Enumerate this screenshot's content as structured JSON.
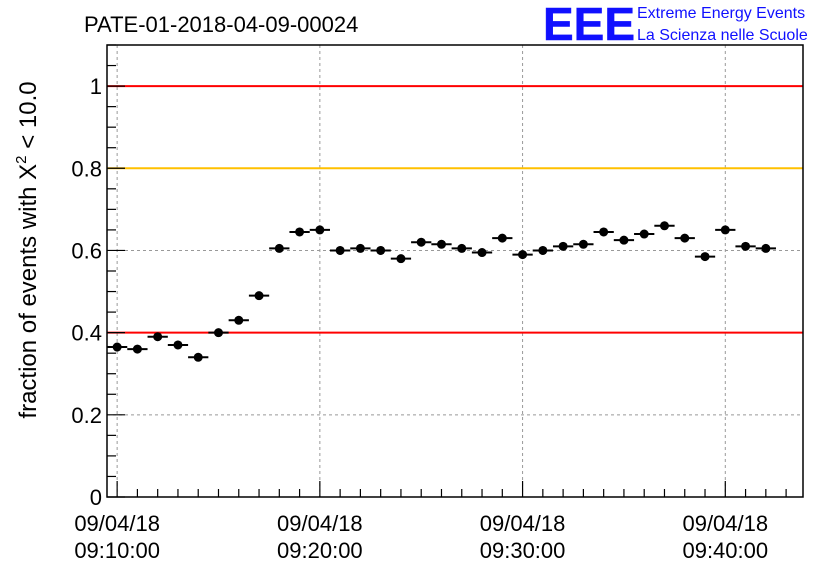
{
  "run_title": "PATE-01-2018-04-09-00024",
  "logo": {
    "mark": "EEE",
    "line1": "Extreme Energy Events",
    "line2": "La Scienza nelle Scuole",
    "color": "#1010ff"
  },
  "chart_data": {
    "type": "scatter",
    "title": "PATE-01-2018-04-09-00024",
    "ylabel": "fraction of events with X² < 10.0",
    "ylabel_parts": {
      "prefix": "fraction of events with X",
      "sup": "2",
      "suffix": " < 10.0"
    },
    "xlabel": "",
    "ylim": [
      0,
      1.1
    ],
    "xlim": [
      "2018-04-09 09:09:30",
      "2018-04-09 09:43:50"
    ],
    "grid": true,
    "yticks": [
      {
        "value": 0,
        "label": "0"
      },
      {
        "value": 0.2,
        "label": "0.2"
      },
      {
        "value": 0.4,
        "label": "0.4"
      },
      {
        "value": 0.6,
        "label": "0.6"
      },
      {
        "value": 0.8,
        "label": "0.8"
      },
      {
        "value": 1,
        "label": "1"
      }
    ],
    "xticks": [
      {
        "value": "2018-04-09 09:10:00",
        "date": "09/04/18",
        "time": "09:10:00"
      },
      {
        "value": "2018-04-09 09:20:00",
        "date": "09/04/18",
        "time": "09:20:00"
      },
      {
        "value": "2018-04-09 09:30:00",
        "date": "09/04/18",
        "time": "09:30:00"
      },
      {
        "value": "2018-04-09 09:40:00",
        "date": "09/04/18",
        "time": "09:40:00"
      }
    ],
    "reference_lines": [
      {
        "y": 1.0,
        "color": "#ff0000"
      },
      {
        "y": 0.8,
        "color": "#ffc000"
      },
      {
        "y": 0.4,
        "color": "#ff0000"
      }
    ],
    "x": [
      "2018-04-09 09:10:00",
      "2018-04-09 09:11:00",
      "2018-04-09 09:12:00",
      "2018-04-09 09:13:00",
      "2018-04-09 09:14:00",
      "2018-04-09 09:15:00",
      "2018-04-09 09:16:00",
      "2018-04-09 09:17:00",
      "2018-04-09 09:18:00",
      "2018-04-09 09:19:00",
      "2018-04-09 09:20:00",
      "2018-04-09 09:21:00",
      "2018-04-09 09:22:00",
      "2018-04-09 09:23:00",
      "2018-04-09 09:24:00",
      "2018-04-09 09:25:00",
      "2018-04-09 09:26:00",
      "2018-04-09 09:27:00",
      "2018-04-09 09:28:00",
      "2018-04-09 09:29:00",
      "2018-04-09 09:30:00",
      "2018-04-09 09:31:00",
      "2018-04-09 09:32:00",
      "2018-04-09 09:33:00",
      "2018-04-09 09:34:00",
      "2018-04-09 09:35:00",
      "2018-04-09 09:36:00",
      "2018-04-09 09:37:00",
      "2018-04-09 09:38:00",
      "2018-04-09 09:39:00",
      "2018-04-09 09:40:00",
      "2018-04-09 09:41:00",
      "2018-04-09 09:42:00"
    ],
    "values": [
      0.365,
      0.36,
      0.39,
      0.37,
      0.34,
      0.4,
      0.43,
      0.49,
      0.605,
      0.645,
      0.65,
      0.6,
      0.605,
      0.6,
      0.58,
      0.62,
      0.615,
      0.605,
      0.595,
      0.63,
      0.59,
      0.6,
      0.61,
      0.615,
      0.645,
      0.625,
      0.64,
      0.66,
      0.63,
      0.585,
      0.65,
      0.61,
      0.605
    ],
    "y_error": 0.01,
    "x_halfwidth_s": 30
  }
}
